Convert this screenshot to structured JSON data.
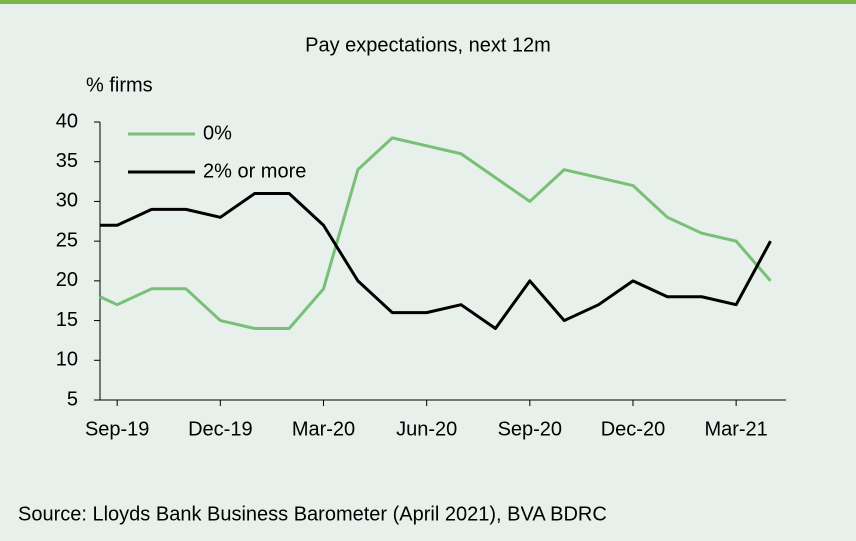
{
  "chart_data": {
    "type": "line",
    "title": "Pay expectations, next 12m",
    "y_label": "% firms",
    "source": "Source: Lloyds Bank Business Barometer (April 2021), BVA BDRC",
    "x": [
      -0.5,
      0,
      1,
      2,
      3,
      4,
      5,
      6,
      7,
      8,
      9,
      10,
      11,
      12,
      13,
      14,
      15,
      16,
      17,
      18,
      19
    ],
    "series": [
      {
        "name": "0%",
        "color": "#79c077",
        "values": [
          18,
          17,
          19,
          19,
          15,
          14,
          14,
          19,
          34,
          38,
          37,
          36,
          33,
          30,
          34,
          33,
          32,
          28,
          26,
          25,
          20
        ]
      },
      {
        "name": "2% or more",
        "color": "#000000",
        "values": [
          27,
          27,
          29,
          29,
          28,
          31,
          31,
          27,
          20,
          16,
          16,
          17,
          14,
          20,
          15,
          17,
          20,
          18,
          18,
          17,
          25
        ]
      }
    ],
    "xlim": [
      -0.5,
      19.45
    ],
    "xticks": [
      {
        "value": 0,
        "label": "Sep-19"
      },
      {
        "value": 3,
        "label": "Dec-19"
      },
      {
        "value": 6,
        "label": "Mar-20"
      },
      {
        "value": 9,
        "label": "Jun-20"
      },
      {
        "value": 12,
        "label": "Sep-20"
      },
      {
        "value": 15,
        "label": "Dec-20"
      },
      {
        "value": 18,
        "label": "Mar-21"
      }
    ],
    "ylim": [
      5,
      40
    ],
    "yticks": [
      5,
      10,
      15,
      20,
      25,
      30,
      35,
      40
    ],
    "legend": "top-left"
  }
}
